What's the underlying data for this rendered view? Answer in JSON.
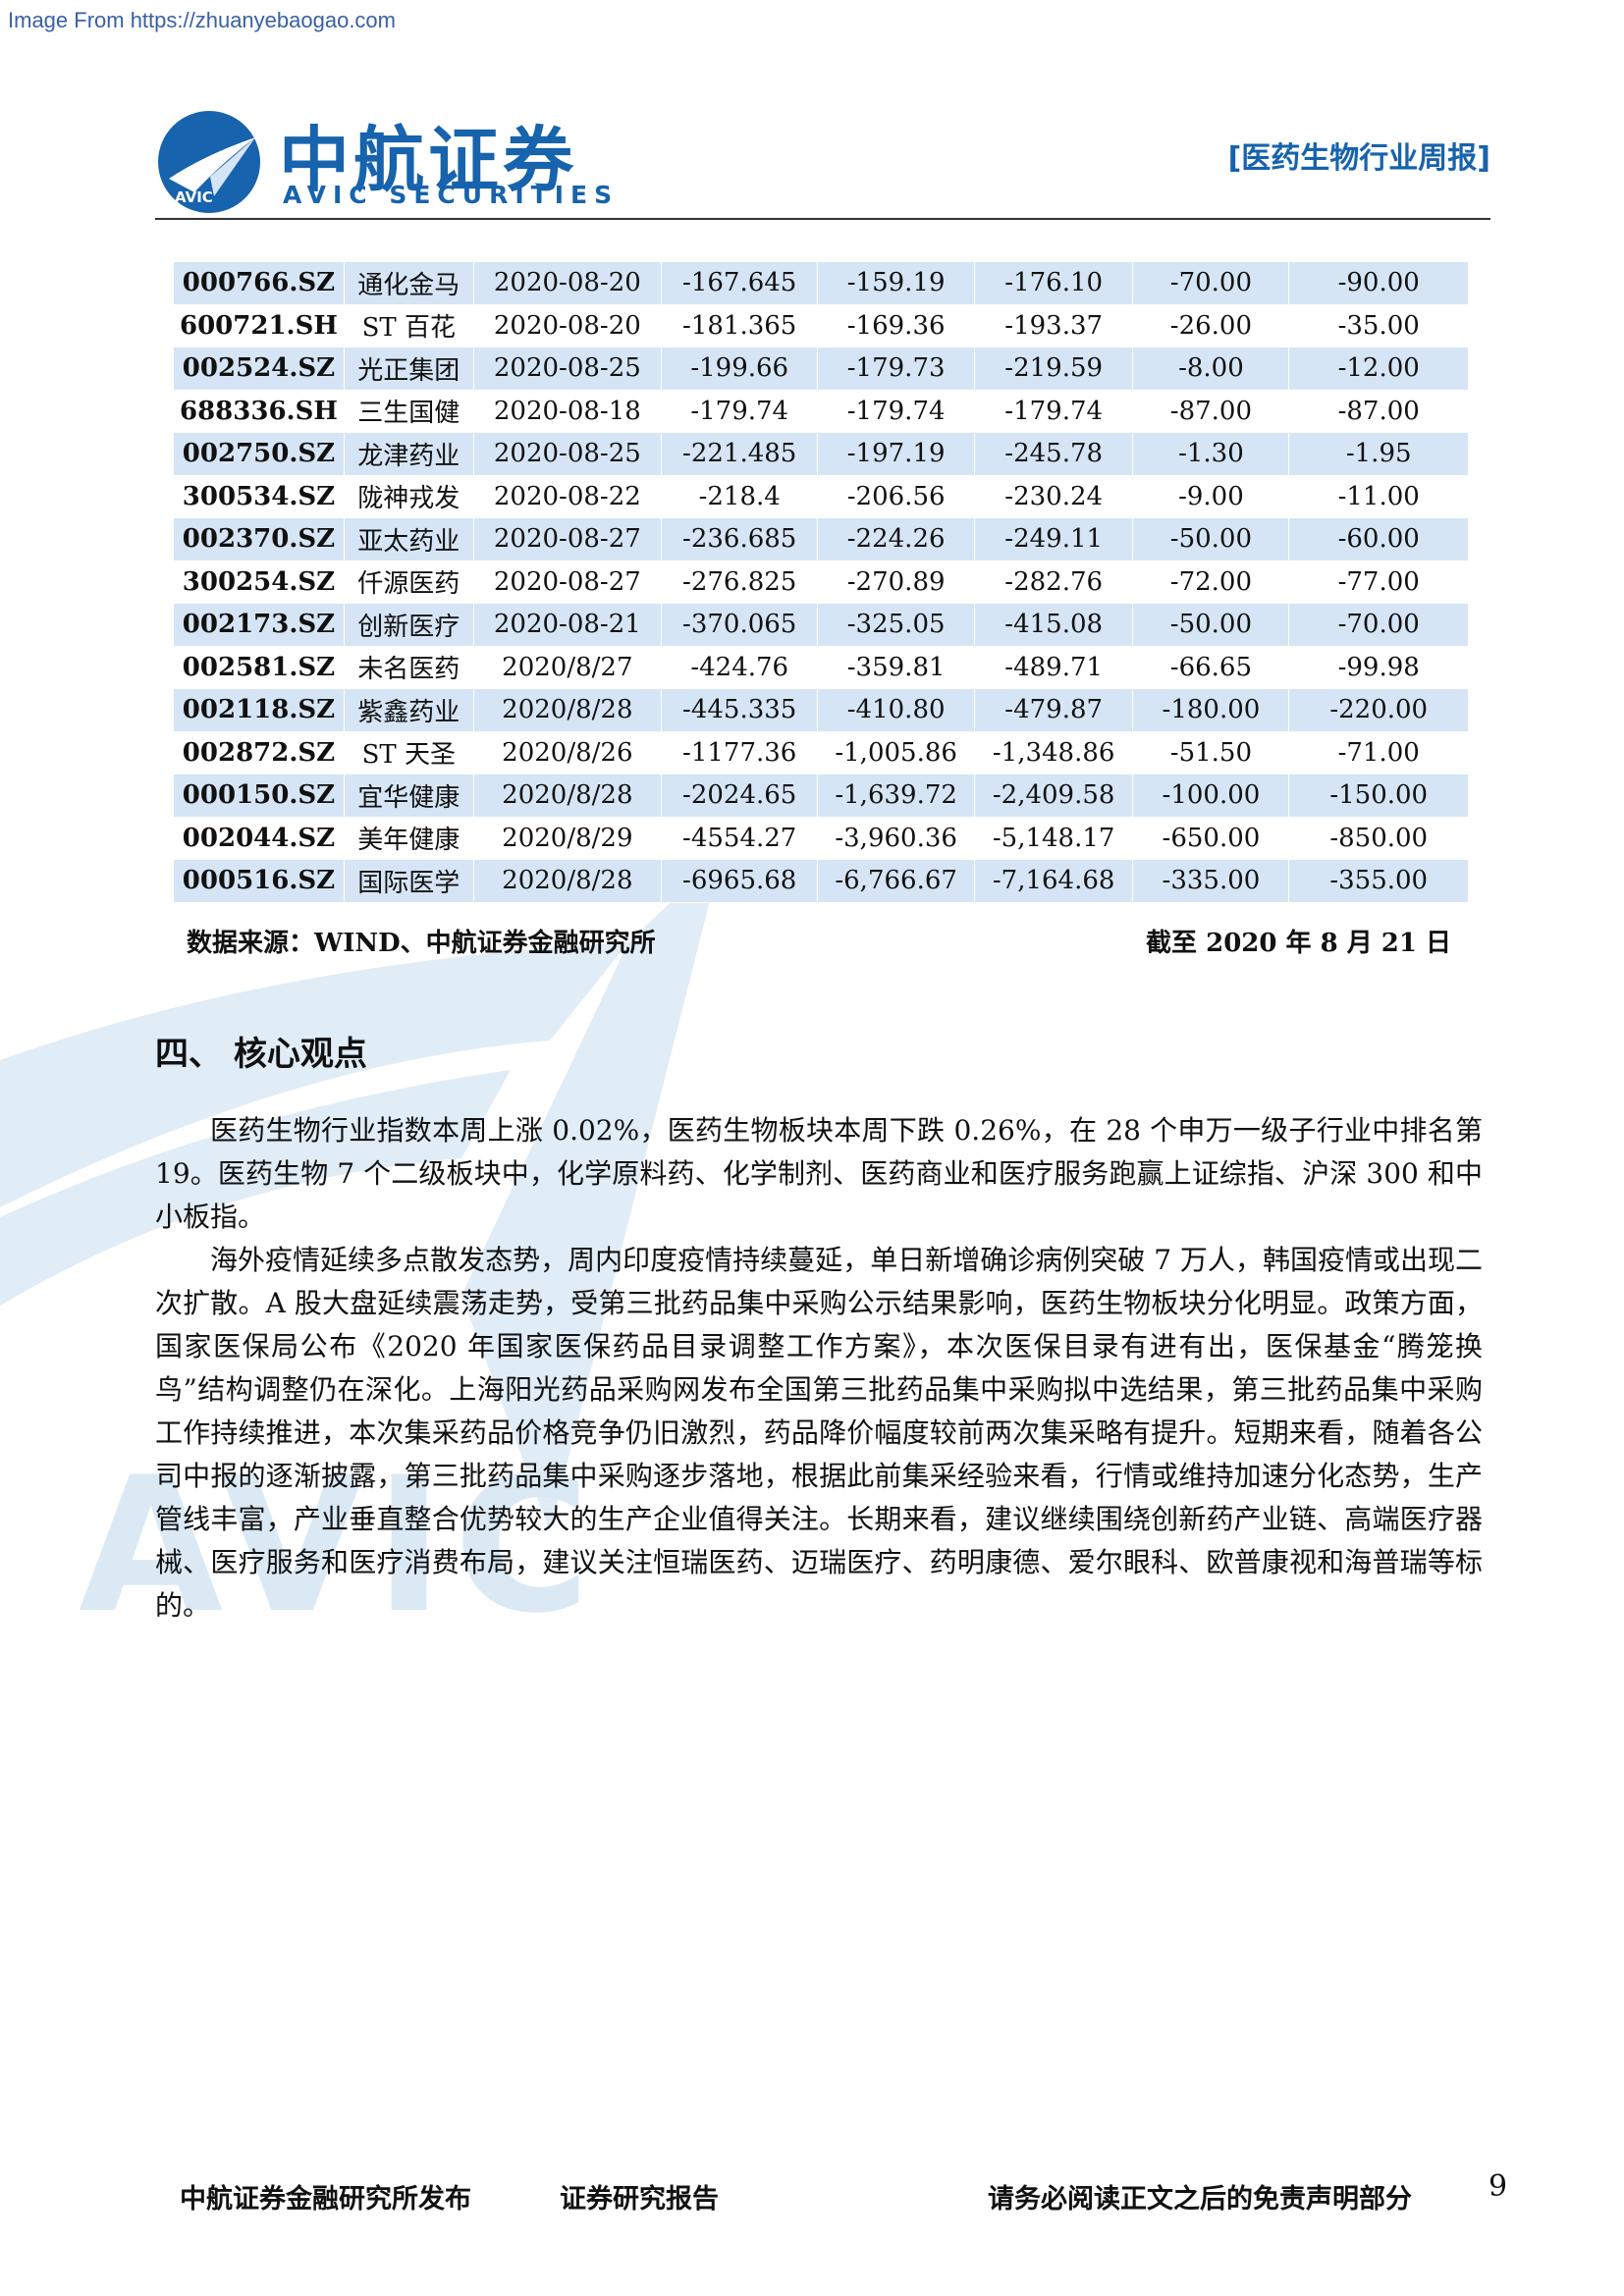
{
  "source_banner": "Image From https://zhuanyebaogao.com",
  "header": {
    "brand_cn": "中航证券",
    "brand_en": "AVIC SECURITIES",
    "logo_text": "AVIC",
    "report_type": "[医药生物行业周报]"
  },
  "table": {
    "rows": [
      [
        "000766.SZ",
        "通化金马",
        "2020-08-20",
        "-167.645",
        "-159.19",
        "-176.10",
        "-70.00",
        "-90.00"
      ],
      [
        "600721.SH",
        "ST 百花",
        "2020-08-20",
        "-181.365",
        "-169.36",
        "-193.37",
        "-26.00",
        "-35.00"
      ],
      [
        "002524.SZ",
        "光正集团",
        "2020-08-25",
        "-199.66",
        "-179.73",
        "-219.59",
        "-8.00",
        "-12.00"
      ],
      [
        "688336.SH",
        "三生国健",
        "2020-08-18",
        "-179.74",
        "-179.74",
        "-179.74",
        "-87.00",
        "-87.00"
      ],
      [
        "002750.SZ",
        "龙津药业",
        "2020-08-25",
        "-221.485",
        "-197.19",
        "-245.78",
        "-1.30",
        "-1.95"
      ],
      [
        "300534.SZ",
        "陇神戎发",
        "2020-08-22",
        "-218.4",
        "-206.56",
        "-230.24",
        "-9.00",
        "-11.00"
      ],
      [
        "002370.SZ",
        "亚太药业",
        "2020-08-27",
        "-236.685",
        "-224.26",
        "-249.11",
        "-50.00",
        "-60.00"
      ],
      [
        "300254.SZ",
        "仟源医药",
        "2020-08-27",
        "-276.825",
        "-270.89",
        "-282.76",
        "-72.00",
        "-77.00"
      ],
      [
        "002173.SZ",
        "创新医疗",
        "2020-08-21",
        "-370.065",
        "-325.05",
        "-415.08",
        "-50.00",
        "-70.00"
      ],
      [
        "002581.SZ",
        "未名医药",
        "2020/8/27",
        "-424.76",
        "-359.81",
        "-489.71",
        "-66.65",
        "-99.98"
      ],
      [
        "002118.SZ",
        "紫鑫药业",
        "2020/8/28",
        "-445.335",
        "-410.80",
        "-479.87",
        "-180.00",
        "-220.00"
      ],
      [
        "002872.SZ",
        "ST 天圣",
        "2020/8/26",
        "-1177.36",
        "-1,005.86",
        "-1,348.86",
        "-51.50",
        "-71.00"
      ],
      [
        "000150.SZ",
        "宜华健康",
        "2020/8/28",
        "-2024.65",
        "-1,639.72",
        "-2,409.58",
        "-100.00",
        "-150.00"
      ],
      [
        "002044.SZ",
        "美年健康",
        "2020/8/29",
        "-4554.27",
        "-3,960.36",
        "-5,148.17",
        "-650.00",
        "-850.00"
      ],
      [
        "000516.SZ",
        "国际医学",
        "2020/8/28",
        "-6965.68",
        "-6,766.67",
        "-7,164.68",
        "-335.00",
        "-355.00"
      ]
    ],
    "source": "数据来源：WIND、中航证券金融研究所",
    "as_of": "截至 2020 年 8 月 21 日"
  },
  "section": {
    "title": "四、 核心观点",
    "paragraphs": [
      "医药生物行业指数本周上涨 0.02%，医药生物板块本周下跌 0.26%，在 28 个申万一级子行业中排名第 19。医药生物 7 个二级板块中，化学原料药、化学制剂、医药商业和医疗服务跑赢上证综指、沪深 300 和中小板指。",
      "海外疫情延续多点散发态势，周内印度疫情持续蔓延，单日新增确诊病例突破 7 万人，韩国疫情或出现二次扩散。A 股大盘延续震荡走势，受第三批药品集中采购公示结果影响，医药生物板块分化明显。政策方面，国家医保局公布《2020 年国家医保药品目录调整工作方案》，本次医保目录有进有出，医保基金“腾笼换鸟”结构调整仍在深化。上海阳光药品采购网发布全国第三批药品集中采购拟中选结果，第三批药品集中采购工作持续推进，本次集采药品价格竞争仍旧激烈，药品降价幅度较前两次集采略有提升。短期来看，随着各公司中报的逐渐披露，第三批药品集中采购逐步落地，根据此前集采经验来看，行情或维持加速分化态势，生产管线丰富，产业垂直整合优势较大的生产企业值得关注。长期来看，建议继续围绕创新药产业链、高端医疗器械、医疗服务和医疗消费布局，建议关注恒瑞医药、迈瑞医疗、药明康德、爱尔眼科、欧普康视和海普瑞等标的。"
    ]
  },
  "footer": {
    "publisher": "中航证券金融研究所发布",
    "report_kind": "证券研究报告",
    "disclaimer": "请务必阅读正文之后的免责声明部分",
    "page": "9"
  },
  "colors": {
    "brand_blue": "#1763ad",
    "table_stripe": "#d6e5f5",
    "watermark": "#dbe9f5"
  }
}
